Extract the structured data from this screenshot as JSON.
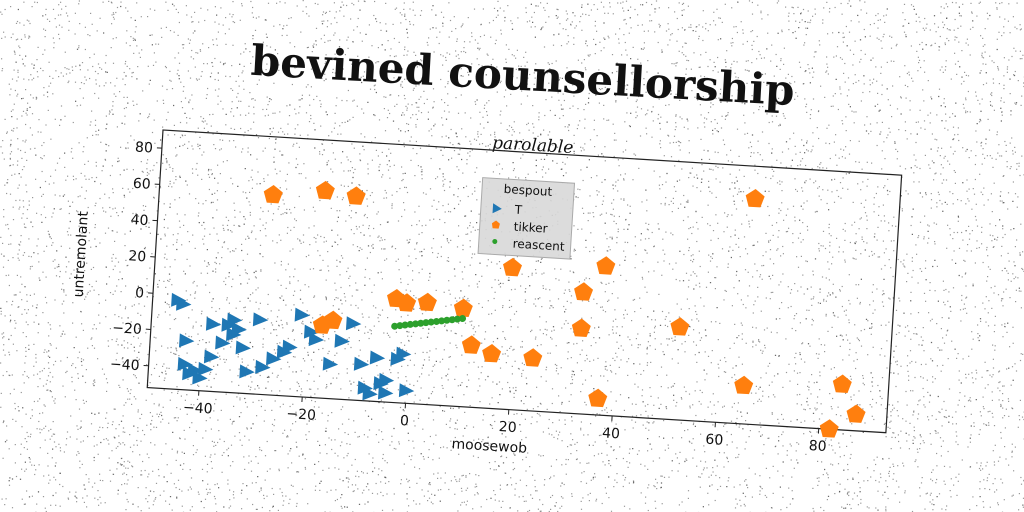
{
  "chart_data": {
    "type": "scatter",
    "title": "bevined counsellorship",
    "subtitle": "parolable",
    "xlabel": "moosewob",
    "ylabel": "untremolant",
    "xlim": [
      -50,
      93
    ],
    "ylim": [
      -52,
      90
    ],
    "xticks": [
      -40,
      -20,
      0,
      20,
      40,
      60,
      80
    ],
    "yticks": [
      -40,
      -20,
      0,
      20,
      40,
      60,
      80
    ],
    "grid": false,
    "legend": {
      "title": "bespout",
      "position": "top-center"
    },
    "series": [
      {
        "name": "T",
        "marker": "triangle-right",
        "color": "#1f77b4",
        "points": [
          [
            -45,
            -3
          ],
          [
            -44,
            -5
          ],
          [
            -43,
            -25
          ],
          [
            -43,
            -38
          ],
          [
            -42,
            -43
          ],
          [
            -41,
            -41
          ],
          [
            -40,
            -45
          ],
          [
            -39,
            -40
          ],
          [
            -38,
            -33
          ],
          [
            -38,
            -15
          ],
          [
            -36,
            -25
          ],
          [
            -35,
            -15
          ],
          [
            -34,
            -12
          ],
          [
            -34,
            -20
          ],
          [
            -33,
            -17
          ],
          [
            -32,
            -27
          ],
          [
            -31,
            -40
          ],
          [
            -29,
            -11
          ],
          [
            -28,
            -37
          ],
          [
            -26,
            -32
          ],
          [
            -24,
            -28
          ],
          [
            -23,
            -25
          ],
          [
            -21,
            -7
          ],
          [
            -19,
            -16
          ],
          [
            -18,
            -20
          ],
          [
            -15,
            -33
          ],
          [
            -13,
            -20
          ],
          [
            -11,
            -10
          ],
          [
            -9,
            -32
          ],
          [
            -8,
            -45
          ],
          [
            -7,
            -48
          ],
          [
            -6,
            -28
          ],
          [
            -5,
            -42
          ],
          [
            -4,
            -40
          ],
          [
            -4,
            -47
          ],
          [
            -2,
            -28
          ],
          [
            -1,
            -25
          ],
          [
            0,
            -45
          ]
        ]
      },
      {
        "name": "tikker",
        "marker": "pentagon",
        "color": "#ff7f0e",
        "points": [
          [
            -28,
            58
          ],
          [
            -18,
            62
          ],
          [
            -12,
            60
          ],
          [
            -15,
            -9
          ],
          [
            -17,
            -12
          ],
          [
            -3,
            5
          ],
          [
            -1,
            3
          ],
          [
            3,
            4
          ],
          [
            10,
            2
          ],
          [
            12,
            -18
          ],
          [
            16,
            -22
          ],
          [
            19,
            26
          ],
          [
            24,
            -23
          ],
          [
            33,
            -5
          ],
          [
            33,
            15
          ],
          [
            37,
            30
          ],
          [
            37,
            -43
          ],
          [
            52,
            -1
          ],
          [
            65,
            72
          ],
          [
            65,
            -31
          ],
          [
            82,
            -52
          ],
          [
            84,
            -27
          ],
          [
            87,
            -43
          ]
        ]
      },
      {
        "name": "reascent",
        "marker": "point",
        "color": "#2ca02c",
        "points": [
          [
            -3,
            -10
          ],
          [
            -2,
            -9.5
          ],
          [
            -1,
            -9
          ],
          [
            0,
            -8.5
          ],
          [
            1,
            -8
          ],
          [
            2,
            -7.5
          ],
          [
            3,
            -7
          ],
          [
            4,
            -6.5
          ],
          [
            5,
            -6
          ],
          [
            6,
            -5.5
          ],
          [
            7,
            -5
          ],
          [
            8,
            -4.5
          ],
          [
            9,
            -4
          ],
          [
            10,
            -3.5
          ]
        ]
      }
    ]
  }
}
